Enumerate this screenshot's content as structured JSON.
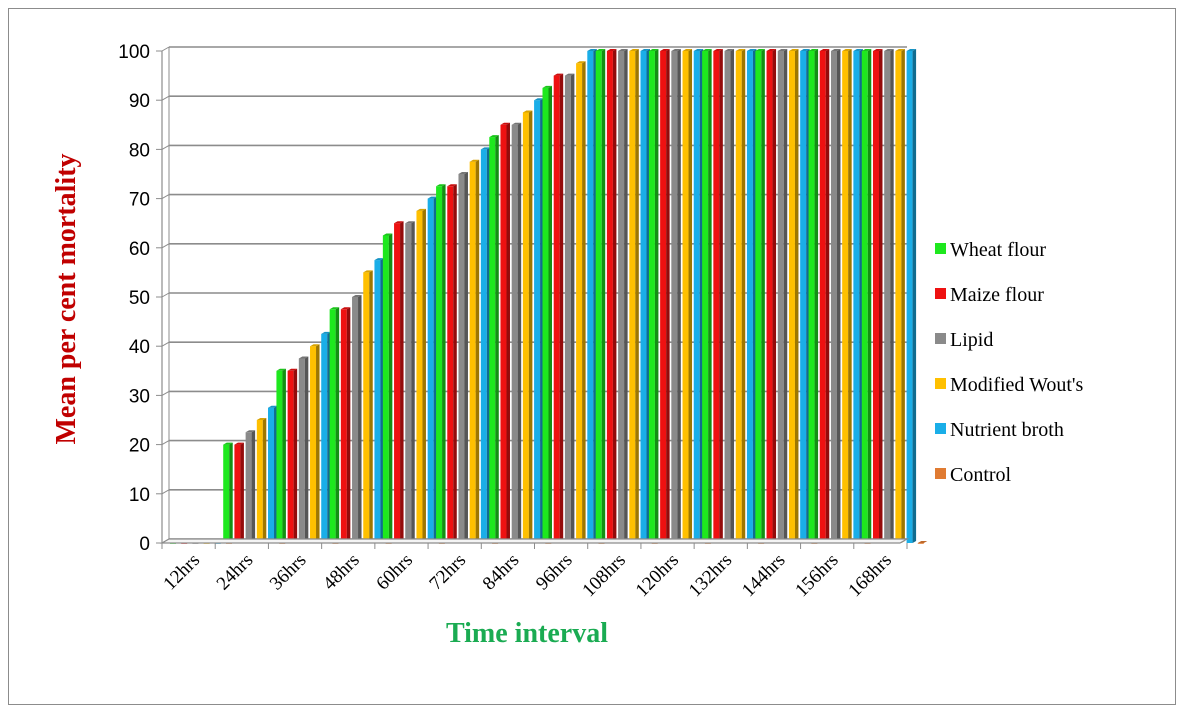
{
  "chart_data": {
    "type": "bar",
    "style": "3d-clustered-column",
    "title": "",
    "xlabel": "Time interval",
    "ylabel": "Mean per cent mortality",
    "ylim": [
      0,
      100
    ],
    "yticks": [
      0,
      10,
      20,
      30,
      40,
      50,
      60,
      70,
      80,
      90,
      100
    ],
    "grid": true,
    "legend_position": "right",
    "categories": [
      "12hrs",
      "24hrs",
      "36hrs",
      "48hrs",
      "60hrs",
      "72hrs",
      "84hrs",
      "96hrs",
      "108hrs",
      "120hrs",
      "132hrs",
      "144hrs",
      "156hrs",
      "168hrs"
    ],
    "series": [
      {
        "name": "Wheat flour",
        "color": "#1ee81e",
        "values": [
          0,
          20,
          35,
          47.5,
          62.5,
          72.5,
          82.5,
          92.5,
          100,
          100,
          100,
          100,
          100,
          100
        ]
      },
      {
        "name": "Maize flour",
        "color": "#ee1111",
        "values": [
          0,
          20,
          35,
          47.5,
          65,
          72.5,
          85,
          95,
          100,
          100,
          100,
          100,
          100,
          100
        ]
      },
      {
        "name": "Lipid",
        "color": "#8a8a8a",
        "values": [
          0,
          22.5,
          37.5,
          50,
          65,
          75,
          85,
          95,
          100,
          100,
          100,
          100,
          100,
          100
        ]
      },
      {
        "name": "Modified Wout's",
        "color": "#ffc000",
        "values": [
          0,
          25,
          40,
          55,
          67.5,
          77.5,
          87.5,
          97.5,
          100,
          100,
          100,
          100,
          100,
          100
        ]
      },
      {
        "name": "Nutrient broth",
        "color": "#1aaee8",
        "values": [
          0,
          27.5,
          42.5,
          57.5,
          70,
          80,
          90,
          100,
          100,
          100,
          100,
          100,
          100,
          100
        ]
      },
      {
        "name": "Control",
        "color": "#e07b32",
        "values": [
          0,
          0,
          0,
          0,
          0,
          0,
          0,
          0,
          0,
          0,
          0,
          0,
          0,
          0
        ]
      }
    ]
  }
}
